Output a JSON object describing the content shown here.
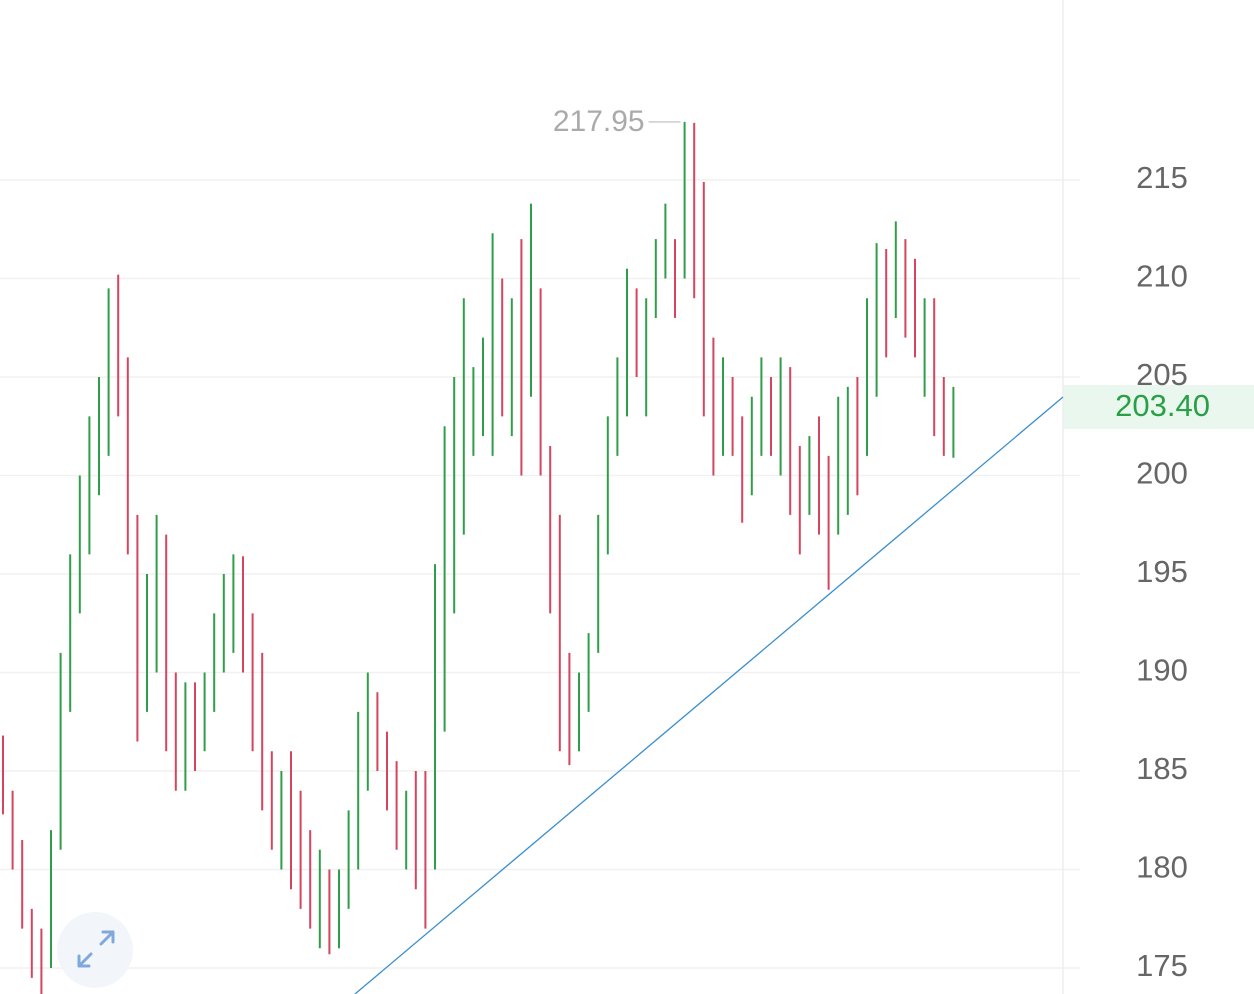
{
  "chart_data": {
    "type": "ohlc_bar",
    "ylim": [
      173.68,
      224.14
    ],
    "yticks": [
      175,
      180,
      185,
      190,
      195,
      200,
      205,
      210,
      215
    ],
    "grid": true,
    "up_color": "#2f9e4a",
    "down_color": "#d6455d",
    "last_price": {
      "value": 203.4,
      "label": "203.40"
    },
    "max_index": 71,
    "min_index": 4,
    "high": [
      186.8,
      184,
      181.5,
      178,
      177,
      182,
      191,
      196,
      200,
      203,
      205,
      209.5,
      210.2,
      206,
      198,
      195,
      198,
      197,
      190,
      189.5,
      189.5,
      190,
      193,
      195,
      196,
      195.9,
      193,
      191,
      186,
      185,
      186,
      184,
      182,
      181,
      180,
      180,
      183,
      188,
      190,
      189,
      187,
      185.5,
      184,
      185,
      185,
      195.5,
      202.5,
      205,
      209,
      205.5,
      207,
      212.3,
      210,
      209,
      212,
      213.8,
      209.5,
      201.5,
      198,
      191,
      190,
      192,
      198,
      203,
      206,
      210.5,
      209.5,
      209,
      212,
      213.8,
      212,
      217.95,
      217.9,
      214.9,
      207,
      206,
      205,
      203,
      204,
      206,
      205,
      206,
      205.5,
      201.5,
      202,
      203,
      201,
      204,
      204.5,
      205,
      209,
      211.8,
      211.5,
      212.9,
      212,
      211,
      209,
      209,
      205,
      204.5
    ],
    "low": [
      182.8,
      180,
      177,
      174.5,
      173.24,
      175,
      181,
      188,
      193,
      196,
      199,
      201,
      203,
      196,
      186.5,
      188,
      190,
      186,
      184,
      184,
      185,
      186,
      188,
      190,
      191,
      190,
      186,
      183,
      181,
      180,
      179,
      178,
      177,
      176,
      175.7,
      176,
      178,
      180,
      184,
      185,
      183,
      181,
      180,
      179,
      177,
      180,
      187,
      193,
      197,
      201,
      202,
      201,
      203,
      202,
      200,
      204,
      200,
      193,
      186,
      185.3,
      186,
      188,
      191,
      196,
      201,
      203,
      205,
      203,
      208,
      210,
      208,
      210,
      209,
      203,
      200,
      201,
      201,
      197.6,
      199,
      201,
      201,
      200,
      198,
      196,
      198,
      197,
      194.2,
      197,
      198,
      199,
      201,
      204,
      206,
      208,
      207,
      206,
      204,
      202,
      201,
      200.9
    ],
    "up": [
      false,
      false,
      false,
      false,
      false,
      true,
      true,
      true,
      true,
      true,
      true,
      true,
      false,
      false,
      false,
      true,
      true,
      false,
      false,
      true,
      false,
      true,
      true,
      true,
      true,
      false,
      false,
      false,
      false,
      true,
      false,
      false,
      false,
      true,
      false,
      true,
      true,
      true,
      true,
      false,
      false,
      false,
      true,
      false,
      false,
      true,
      true,
      true,
      true,
      true,
      true,
      true,
      false,
      true,
      false,
      true,
      false,
      false,
      false,
      false,
      true,
      true,
      true,
      true,
      true,
      true,
      false,
      true,
      true,
      true,
      false,
      true,
      false,
      false,
      false,
      true,
      false,
      false,
      true,
      true,
      false,
      true,
      false,
      false,
      true,
      false,
      false,
      true,
      true,
      false,
      true,
      true,
      false,
      true,
      false,
      false,
      true,
      false,
      false,
      true
    ]
  }
}
